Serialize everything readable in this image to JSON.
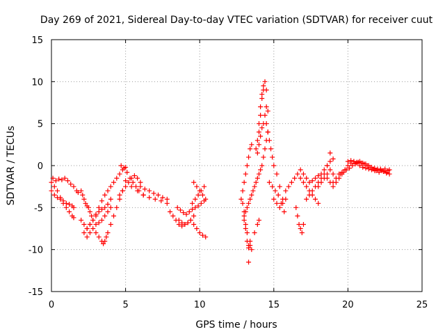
{
  "chart_data": {
    "type": "scatter",
    "title": "Day 269 of 2021, Sidereal Day-to-day VTEC variation (SDTVAR) for receiver cuut",
    "xlabel": "GPS time / hours",
    "ylabel": "SDTVAR / TECUs",
    "xlim": [
      0,
      25
    ],
    "ylim": [
      -15,
      15
    ],
    "xticks": [
      0,
      5,
      10,
      15,
      20,
      25
    ],
    "yticks": [
      -15,
      -10,
      -5,
      0,
      5,
      10,
      15
    ],
    "grid": true,
    "marker": "+",
    "color": "#ff0000",
    "series": [
      {
        "name": "SDTVAR",
        "x": [
          0.0,
          0.2,
          0.4,
          0.6,
          0.8,
          1.0,
          1.2,
          1.4,
          1.5,
          0.1,
          0.3,
          0.5,
          0.7,
          0.9,
          1.1,
          1.3,
          1.5,
          1.7,
          1.8,
          0.0,
          0.2,
          0.4,
          0.6,
          0.8,
          1.0,
          1.2,
          1.4,
          1.5,
          2.0,
          2.1,
          2.2,
          2.3,
          2.4,
          2.5,
          2.6,
          2.7,
          2.0,
          2.2,
          2.4,
          2.6,
          2.8,
          3.0,
          3.2,
          3.4,
          3.6,
          3.8,
          4.0,
          4.2,
          4.4,
          4.6,
          4.8,
          5.0,
          2.2,
          2.4,
          2.6,
          2.8,
          3.0,
          3.2,
          3.4,
          3.6,
          3.8,
          4.0,
          2.4,
          2.6,
          2.8,
          3.0,
          3.2,
          3.4,
          3.6,
          3.8,
          4.0,
          3.0,
          3.2,
          3.4,
          3.5,
          3.6,
          3.7,
          3.8,
          4.0,
          4.2,
          4.4,
          4.6,
          4.8,
          4.6,
          4.8,
          5.0,
          5.2,
          5.4,
          5.6,
          5.8,
          6.0,
          4.7,
          4.9,
          5.1,
          5.3,
          5.5,
          5.7,
          5.9,
          6.2,
          5.0,
          5.4,
          5.8,
          6.2,
          6.6,
          7.0,
          7.4,
          7.8,
          6.0,
          6.3,
          6.6,
          6.9,
          7.2,
          7.5,
          7.8,
          8.0,
          8.2,
          8.4,
          8.6,
          8.8,
          9.0,
          9.2,
          9.4,
          9.6,
          9.8,
          10.0,
          10.2,
          10.4,
          8.5,
          8.7,
          8.9,
          9.1,
          9.3,
          9.5,
          9.7,
          9.9,
          10.1,
          10.3,
          8.6,
          8.8,
          9.0,
          9.2,
          9.4,
          9.6,
          9.5,
          9.7,
          9.9,
          10.1,
          10.3,
          9.6,
          9.8,
          10.0,
          10.2,
          10.4,
          12.8,
          12.9,
          13.0,
          13.0,
          13.1,
          13.1,
          13.2,
          13.2,
          13.3,
          13.3,
          13.4,
          13.4,
          12.9,
          13.0,
          13.1,
          13.2,
          13.3,
          13.4,
          13.5,
          13.0,
          13.1,
          13.2,
          13.3,
          13.4,
          13.5,
          13.6,
          13.7,
          13.8,
          13.9,
          13.3,
          13.5,
          13.7,
          13.9,
          14.0,
          13.8,
          13.9,
          14.0,
          14.0,
          14.1,
          14.1,
          14.2,
          14.2,
          14.3,
          14.3,
          14.4,
          14.5,
          13.9,
          14.0,
          14.1,
          14.2,
          14.3,
          14.4,
          14.5,
          14.6,
          14.0,
          14.1,
          14.2,
          14.3,
          14.4,
          14.5,
          14.6,
          14.5,
          14.6,
          14.7,
          14.8,
          14.9,
          15.0,
          15.2,
          15.4,
          15.6,
          14.7,
          14.9,
          15.1,
          15.3,
          15.5,
          15.7,
          15.0,
          15.2,
          15.4,
          15.6,
          15.8,
          15.8,
          16.0,
          16.2,
          16.4,
          16.6,
          16.8,
          17.0,
          17.2,
          17.4,
          17.6,
          17.8,
          18.0,
          16.5,
          16.6,
          16.7,
          16.8,
          16.9,
          17.0,
          16.8,
          17.0,
          17.2,
          17.4,
          17.6,
          17.8,
          18.0,
          18.2,
          18.4,
          18.6,
          18.8,
          19.0,
          17.2,
          17.4,
          17.6,
          17.8,
          18.0,
          18.2,
          18.4,
          18.6,
          18.8,
          18.0,
          18.2,
          18.4,
          18.6,
          18.8,
          19.0,
          18.6,
          18.8,
          19.0,
          19.2,
          19.4,
          19.6,
          19.8,
          20.0,
          20.2,
          20.4,
          20.6,
          20.8,
          21.0,
          21.2,
          21.4,
          21.6,
          21.8,
          22.0,
          22.2,
          22.4,
          22.6,
          22.8,
          19.0,
          19.2,
          19.4,
          19.6,
          19.8,
          20.0,
          20.2,
          20.4,
          20.6,
          20.8,
          21.0,
          21.2,
          21.4,
          21.6,
          21.8,
          22.0,
          22.2,
          22.4,
          22.6,
          22.8,
          19.5,
          19.7,
          19.9,
          20.1,
          20.3,
          20.5,
          20.7,
          20.9,
          21.1,
          21.3,
          21.5,
          21.7,
          21.9,
          22.1,
          22.3,
          22.5,
          22.7
        ],
        "y": [
          -2.0,
          -2.5,
          -3.0,
          -3.8,
          -4.5,
          -5.0,
          -5.5,
          -6.0,
          -6.2,
          -1.5,
          -1.8,
          -1.6,
          -1.7,
          -1.5,
          -1.8,
          -2.2,
          -2.5,
          -3.0,
          -3.2,
          -3.0,
          -3.5,
          -3.8,
          -4.0,
          -4.2,
          -4.5,
          -4.6,
          -4.8,
          -5.0,
          -3.0,
          -3.5,
          -4.0,
          -4.5,
          -4.8,
          -5.0,
          -5.5,
          -6.0,
          -6.5,
          -7.0,
          -7.5,
          -7.0,
          -6.5,
          -5.8,
          -5.0,
          -4.2,
          -3.5,
          -3.0,
          -2.5,
          -2.0,
          -1.5,
          -1.0,
          -0.5,
          -0.2,
          -8.0,
          -8.5,
          -8.0,
          -7.5,
          -7.0,
          -6.8,
          -6.5,
          -6.0,
          -5.5,
          -5.0,
          -7.5,
          -7.0,
          -6.5,
          -6.0,
          -5.5,
          -5.2,
          -5.0,
          -4.6,
          -4.0,
          -8.0,
          -8.5,
          -9.0,
          -9.3,
          -9.0,
          -8.5,
          -8.0,
          -7.0,
          -6.0,
          -5.0,
          -4.0,
          -3.0,
          -3.5,
          -3.0,
          -2.5,
          -2.0,
          -1.5,
          -1.2,
          -1.5,
          -2.0,
          0.0,
          -0.3,
          -0.8,
          -1.5,
          -2.0,
          -2.5,
          -3.0,
          -3.5,
          -1.8,
          -2.5,
          -3.0,
          -3.5,
          -3.8,
          -4.0,
          -4.2,
          -4.5,
          -2.5,
          -2.8,
          -3.0,
          -3.3,
          -3.5,
          -3.8,
          -4.0,
          -5.5,
          -6.0,
          -6.5,
          -7.0,
          -7.2,
          -7.0,
          -6.8,
          -6.5,
          -7.0,
          -7.5,
          -8.0,
          -8.3,
          -8.5,
          -5.0,
          -5.3,
          -5.6,
          -5.8,
          -5.5,
          -5.2,
          -5.0,
          -4.8,
          -4.5,
          -4.2,
          -6.5,
          -6.8,
          -7.0,
          -6.8,
          -6.5,
          -6.0,
          -4.5,
          -4.0,
          -3.5,
          -3.0,
          -2.5,
          -2.0,
          -2.5,
          -3.0,
          -3.5,
          -4.0,
          -4.0,
          -4.5,
          -5.5,
          -6.5,
          -7.0,
          -7.5,
          -8.0,
          -9.0,
          -9.5,
          -9.8,
          -9.5,
          -9.0,
          -3.0,
          -2.0,
          -1.0,
          0.0,
          1.0,
          2.0,
          2.5,
          -6.0,
          -5.5,
          -5.0,
          -4.5,
          -4.0,
          -3.5,
          -3.0,
          -2.5,
          -2.0,
          -1.5,
          -11.5,
          -10.0,
          -8.0,
          -7.0,
          -6.5,
          2.0,
          3.0,
          4.0,
          5.0,
          6.0,
          7.0,
          8.0,
          8.5,
          9.0,
          9.5,
          10.0,
          9.0,
          1.5,
          2.5,
          3.5,
          4.5,
          5.0,
          6.0,
          7.0,
          6.5,
          -1.0,
          -0.5,
          0.0,
          1.0,
          2.0,
          3.0,
          4.0,
          5.0,
          4.0,
          3.0,
          2.0,
          1.0,
          0.0,
          -1.0,
          -2.5,
          -4.0,
          -2.0,
          -2.5,
          -3.0,
          -3.5,
          -4.5,
          -5.5,
          -4.0,
          -4.5,
          -5.0,
          -4.5,
          -4.0,
          -3.0,
          -2.5,
          -2.0,
          -1.5,
          -1.0,
          -1.5,
          -2.0,
          -2.5,
          -3.0,
          -3.5,
          -4.0,
          -4.5,
          -5.0,
          -6.0,
          -7.0,
          -7.5,
          -8.0,
          -7.0,
          -0.5,
          -1.0,
          -1.5,
          -2.0,
          -1.8,
          -1.5,
          -1.2,
          -1.0,
          -0.5,
          0.0,
          0.5,
          0.8,
          -4.0,
          -3.5,
          -3.0,
          -2.5,
          -2.0,
          -1.5,
          -1.0,
          0.0,
          1.5,
          -2.5,
          -2.0,
          -1.5,
          -1.0,
          -0.5,
          -1.0,
          -1.5,
          -2.0,
          -2.5,
          -2.0,
          -1.5,
          -1.0,
          -0.5,
          0.0,
          0.3,
          0.5,
          0.3,
          0.0,
          -0.2,
          -0.3,
          -0.4,
          -0.5,
          -0.6,
          -0.5,
          -0.4,
          -0.6,
          -0.8,
          -0.5,
          -2.0,
          -1.5,
          -1.0,
          -0.8,
          -0.5,
          0.5,
          0.6,
          0.5,
          0.4,
          0.5,
          0.3,
          0.2,
          0.0,
          -0.2,
          -0.3,
          -0.4,
          -0.5,
          -0.7,
          -0.9,
          -1.0,
          -1.0,
          -0.8,
          -0.5,
          -0.3,
          0.0,
          0.2,
          0.4,
          0.3,
          0.2,
          0.0,
          -0.2,
          -0.4,
          -0.6,
          -0.8,
          -0.6,
          -0.4,
          -0.6
        ]
      }
    ]
  }
}
